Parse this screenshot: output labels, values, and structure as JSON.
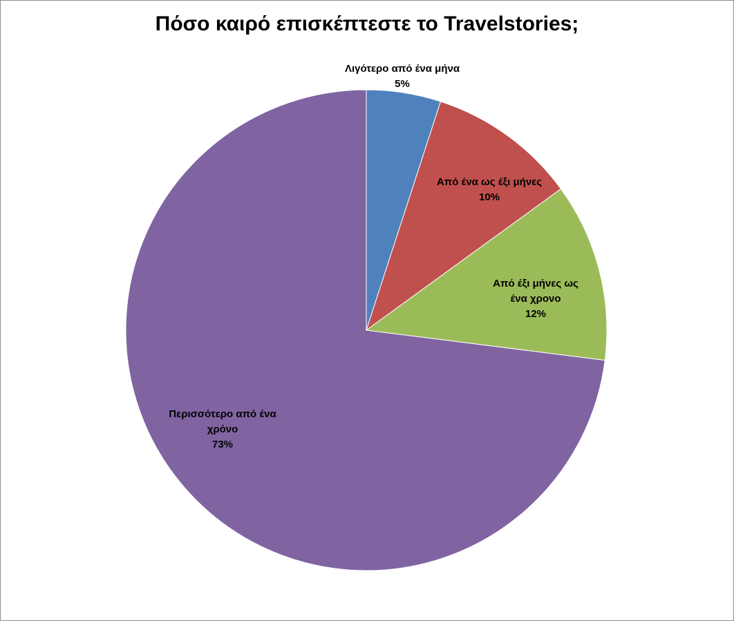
{
  "chart_data": {
    "type": "pie",
    "title": "Πόσο καιρό επισκέπτεστε το Travelstories;",
    "slices": [
      {
        "label": "Λιγότερο από ένα μήνα",
        "value": 5,
        "percent_label": "5%",
        "color": "#4f81bd"
      },
      {
        "label": "Από ένα ως έξι μήνες",
        "value": 10,
        "percent_label": "10%",
        "color": "#c0504d"
      },
      {
        "label": "Από έξι μήνες ως ένα χρονο",
        "value": 12,
        "percent_label": "12%",
        "color": "#9bbb59"
      },
      {
        "label": "Περισσότερο από ένα χρόνο",
        "value": 73,
        "percent_label": "73%",
        "color": "#8064a2"
      }
    ],
    "legend": "none"
  }
}
